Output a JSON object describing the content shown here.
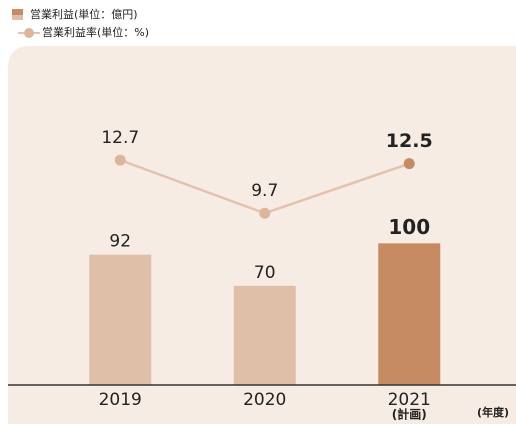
{
  "chart_data": {
    "type": "bar-line",
    "categories": [
      "2019",
      "2020",
      "2021"
    ],
    "category_notes": [
      null,
      null,
      "(計画)"
    ],
    "x_unit": "(年度)",
    "emphasis": [
      false,
      false,
      true
    ],
    "series": [
      {
        "name": "営業利益(単位：億円)",
        "type": "bar",
        "color": "#e0bfa9",
        "colors": [
          "#e0bfa9",
          "#e0bfa9",
          "#c68b63"
        ],
        "values": [
          92,
          70,
          100
        ]
      },
      {
        "name": "営業利益率(単位：%)",
        "type": "line",
        "axis": "y2",
        "color": "#e3c3ad",
        "colors": [
          "#dcb59b",
          "#dcb59b",
          "#c68b63"
        ],
        "values": [
          12.7,
          9.7,
          12.5
        ]
      }
    ],
    "ylim": [
      0,
      240
    ],
    "y2lim": [
      0,
      19.2
    ]
  }
}
